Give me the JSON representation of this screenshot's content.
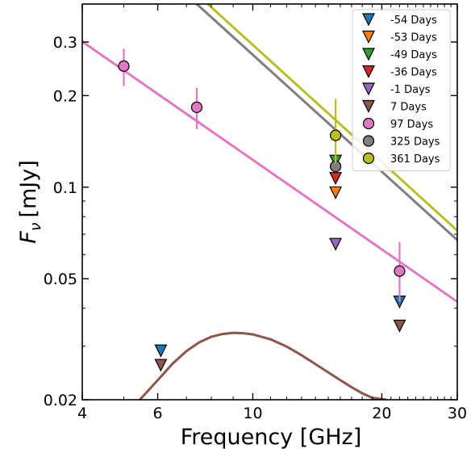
{
  "chart_data": {
    "type": "scatter",
    "xlabel": "Frequency [GHz]",
    "ylabel_symbol": "F",
    "ylabel_subscript": "ν",
    "ylabel_unit": "[mJy]",
    "xscale": "log",
    "yscale": "log",
    "xlim": [
      4,
      30
    ],
    "ylim": [
      0.02,
      0.4
    ],
    "xticks": [
      {
        "value": 4,
        "label": "4"
      },
      {
        "value": 6,
        "label": "6"
      },
      {
        "value": 10,
        "label": "10"
      },
      {
        "value": 20,
        "label": "20"
      },
      {
        "value": 30,
        "label": "30"
      }
    ],
    "yticks": [
      {
        "value": 0.02,
        "label": "0.02"
      },
      {
        "value": 0.05,
        "label": "0.05"
      },
      {
        "value": 0.1,
        "label": "0.1"
      },
      {
        "value": 0.2,
        "label": "0.2"
      },
      {
        "value": 0.3,
        "label": "0.3"
      }
    ],
    "legend_position": "top-right",
    "series": [
      {
        "name": "-54 Days",
        "color": "#1f77b4",
        "marker": "triangle-down",
        "points": [
          {
            "x": 6.1,
            "y": 0.029
          },
          {
            "x": 22.0,
            "y": 0.042
          }
        ]
      },
      {
        "name": "-53 Days",
        "color": "#ff7f0e",
        "marker": "triangle-down",
        "points": [
          {
            "x": 15.6,
            "y": 0.096
          }
        ]
      },
      {
        "name": "-49 Days",
        "color": "#2ca02c",
        "marker": "triangle-down",
        "points": [
          {
            "x": 15.6,
            "y": 0.122
          }
        ]
      },
      {
        "name": "-36 Days",
        "color": "#d62728",
        "marker": "triangle-down",
        "points": [
          {
            "x": 15.6,
            "y": 0.107
          }
        ]
      },
      {
        "name": "-1 Days",
        "color": "#9467bd",
        "marker": "triangle-down",
        "points": [
          {
            "x": 15.6,
            "y": 0.065
          }
        ]
      },
      {
        "name": "7 Days",
        "color": "#8c564b",
        "marker": "triangle-down",
        "points": [
          {
            "x": 6.1,
            "y": 0.026
          },
          {
            "x": 22.0,
            "y": 0.035
          }
        ]
      },
      {
        "name": "97 Days",
        "color": "#e377c2",
        "marker": "circle",
        "points": [
          {
            "x": 5.0,
            "y": 0.25,
            "err": [
              0.215,
              0.285
            ]
          },
          {
            "x": 7.4,
            "y": 0.183,
            "err": [
              0.155,
              0.212
            ]
          },
          {
            "x": 22.0,
            "y": 0.053,
            "err": [
              0.042,
              0.066
            ]
          }
        ]
      },
      {
        "name": "325 Days",
        "color": "#7f7f7f",
        "marker": "circle",
        "points": [
          {
            "x": 15.6,
            "y": 0.117
          }
        ]
      },
      {
        "name": "361 Days",
        "color": "#bcbd22",
        "marker": "circle",
        "points": [
          {
            "x": 15.6,
            "y": 0.148,
            "err": [
              0.12,
              0.195
            ]
          }
        ]
      }
    ],
    "fit_lines": [
      {
        "name": "97 Days fit",
        "color": "#e377c2",
        "points": [
          [
            4,
            0.301
          ],
          [
            30,
            0.042
          ]
        ]
      },
      {
        "name": "325 Days fit",
        "color": "#7f7f7f",
        "points": [
          [
            7.4,
            0.4
          ],
          [
            30,
            0.067
          ]
        ]
      },
      {
        "name": "361 Days fit",
        "color": "#bcbd22",
        "points": [
          [
            7.85,
            0.4
          ],
          [
            30,
            0.072
          ]
        ]
      }
    ],
    "curves": [
      {
        "name": "7 Days model",
        "color": "#8c564b",
        "points": [
          [
            5.45,
            0.02
          ],
          [
            6.0,
            0.0232
          ],
          [
            6.5,
            0.0263
          ],
          [
            7.0,
            0.0289
          ],
          [
            7.5,
            0.0309
          ],
          [
            8.0,
            0.0322
          ],
          [
            8.5,
            0.0329
          ],
          [
            9.0,
            0.0332
          ],
          [
            9.5,
            0.0331
          ],
          [
            10.0,
            0.0328
          ],
          [
            11.0,
            0.0316
          ],
          [
            12.0,
            0.0299
          ],
          [
            13.0,
            0.028
          ],
          [
            14.0,
            0.0262
          ],
          [
            15.0,
            0.0246
          ],
          [
            16.0,
            0.0232
          ],
          [
            17.0,
            0.022
          ],
          [
            18.0,
            0.021
          ],
          [
            19.0,
            0.0203
          ],
          [
            20.5,
            0.02
          ]
        ]
      }
    ]
  }
}
